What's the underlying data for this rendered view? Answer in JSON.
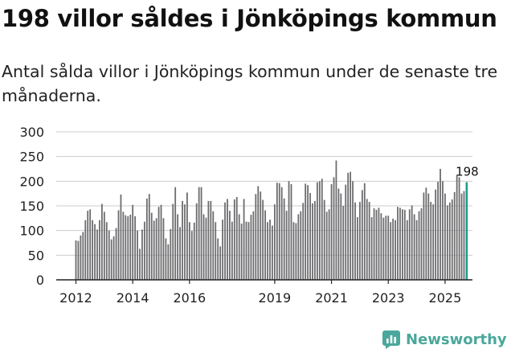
{
  "header": {
    "title": "198 villor såldes i Jönköpings kommun",
    "subtitle": "Antal sålda villor i Jönköpings kommun under de senaste tre månaderna."
  },
  "brand": {
    "name": "Newsworthy",
    "color": "#4aa79b",
    "icon": "newsworthy-logo-icon"
  },
  "colors": {
    "bar": "#6d6d70",
    "highlight": "#1aa08a",
    "grid": "#cccccc",
    "axis": "#222222"
  },
  "chart_data": {
    "type": "bar",
    "title": "198 villor såldes i Jönköpings kommun",
    "xlabel": "",
    "ylabel": "",
    "ylim": [
      0,
      300
    ],
    "yticks": [
      0,
      50,
      100,
      150,
      200,
      250,
      300
    ],
    "x_start": "2012-01",
    "xticks": [
      {
        "label": "2012",
        "index": 0
      },
      {
        "label": "2014",
        "index": 24
      },
      {
        "label": "2016",
        "index": 48
      },
      {
        "label": "2019",
        "index": 84
      },
      {
        "label": "2021",
        "index": 108
      },
      {
        "label": "2023",
        "index": 132
      },
      {
        "label": "2025",
        "index": 156
      }
    ],
    "values": [
      80,
      79,
      90,
      97,
      121,
      140,
      143,
      121,
      113,
      102,
      121,
      154,
      138,
      117,
      100,
      82,
      88,
      105,
      141,
      173,
      138,
      131,
      129,
      132,
      152,
      129,
      100,
      63,
      102,
      118,
      165,
      174,
      136,
      120,
      125,
      148,
      152,
      125,
      84,
      72,
      103,
      154,
      188,
      133,
      107,
      160,
      153,
      177,
      117,
      99,
      116,
      155,
      188,
      188,
      133,
      126,
      160,
      160,
      139,
      117,
      84,
      68,
      122,
      157,
      164,
      140,
      118,
      163,
      168,
      133,
      114,
      164,
      118,
      117,
      132,
      139,
      174,
      190,
      179,
      162,
      141,
      117,
      122,
      110,
      153,
      197,
      196,
      188,
      165,
      140,
      200,
      194,
      117,
      115,
      133,
      139,
      156,
      195,
      192,
      176,
      155,
      160,
      198,
      200,
      205,
      162,
      138,
      143,
      194,
      208,
      242,
      185,
      175,
      150,
      193,
      217,
      219,
      200,
      157,
      127,
      158,
      182,
      196,
      164,
      158,
      127,
      145,
      142,
      146,
      135,
      126,
      130,
      130,
      117,
      124,
      121,
      148,
      146,
      143,
      142,
      121,
      143,
      151,
      133,
      121,
      139,
      145,
      177,
      187,
      175,
      158,
      153,
      183,
      199,
      225,
      200,
      175,
      151,
      157,
      163,
      178,
      213,
      208,
      175,
      180,
      198
    ],
    "annotation": {
      "label": "198",
      "index": 165
    }
  }
}
